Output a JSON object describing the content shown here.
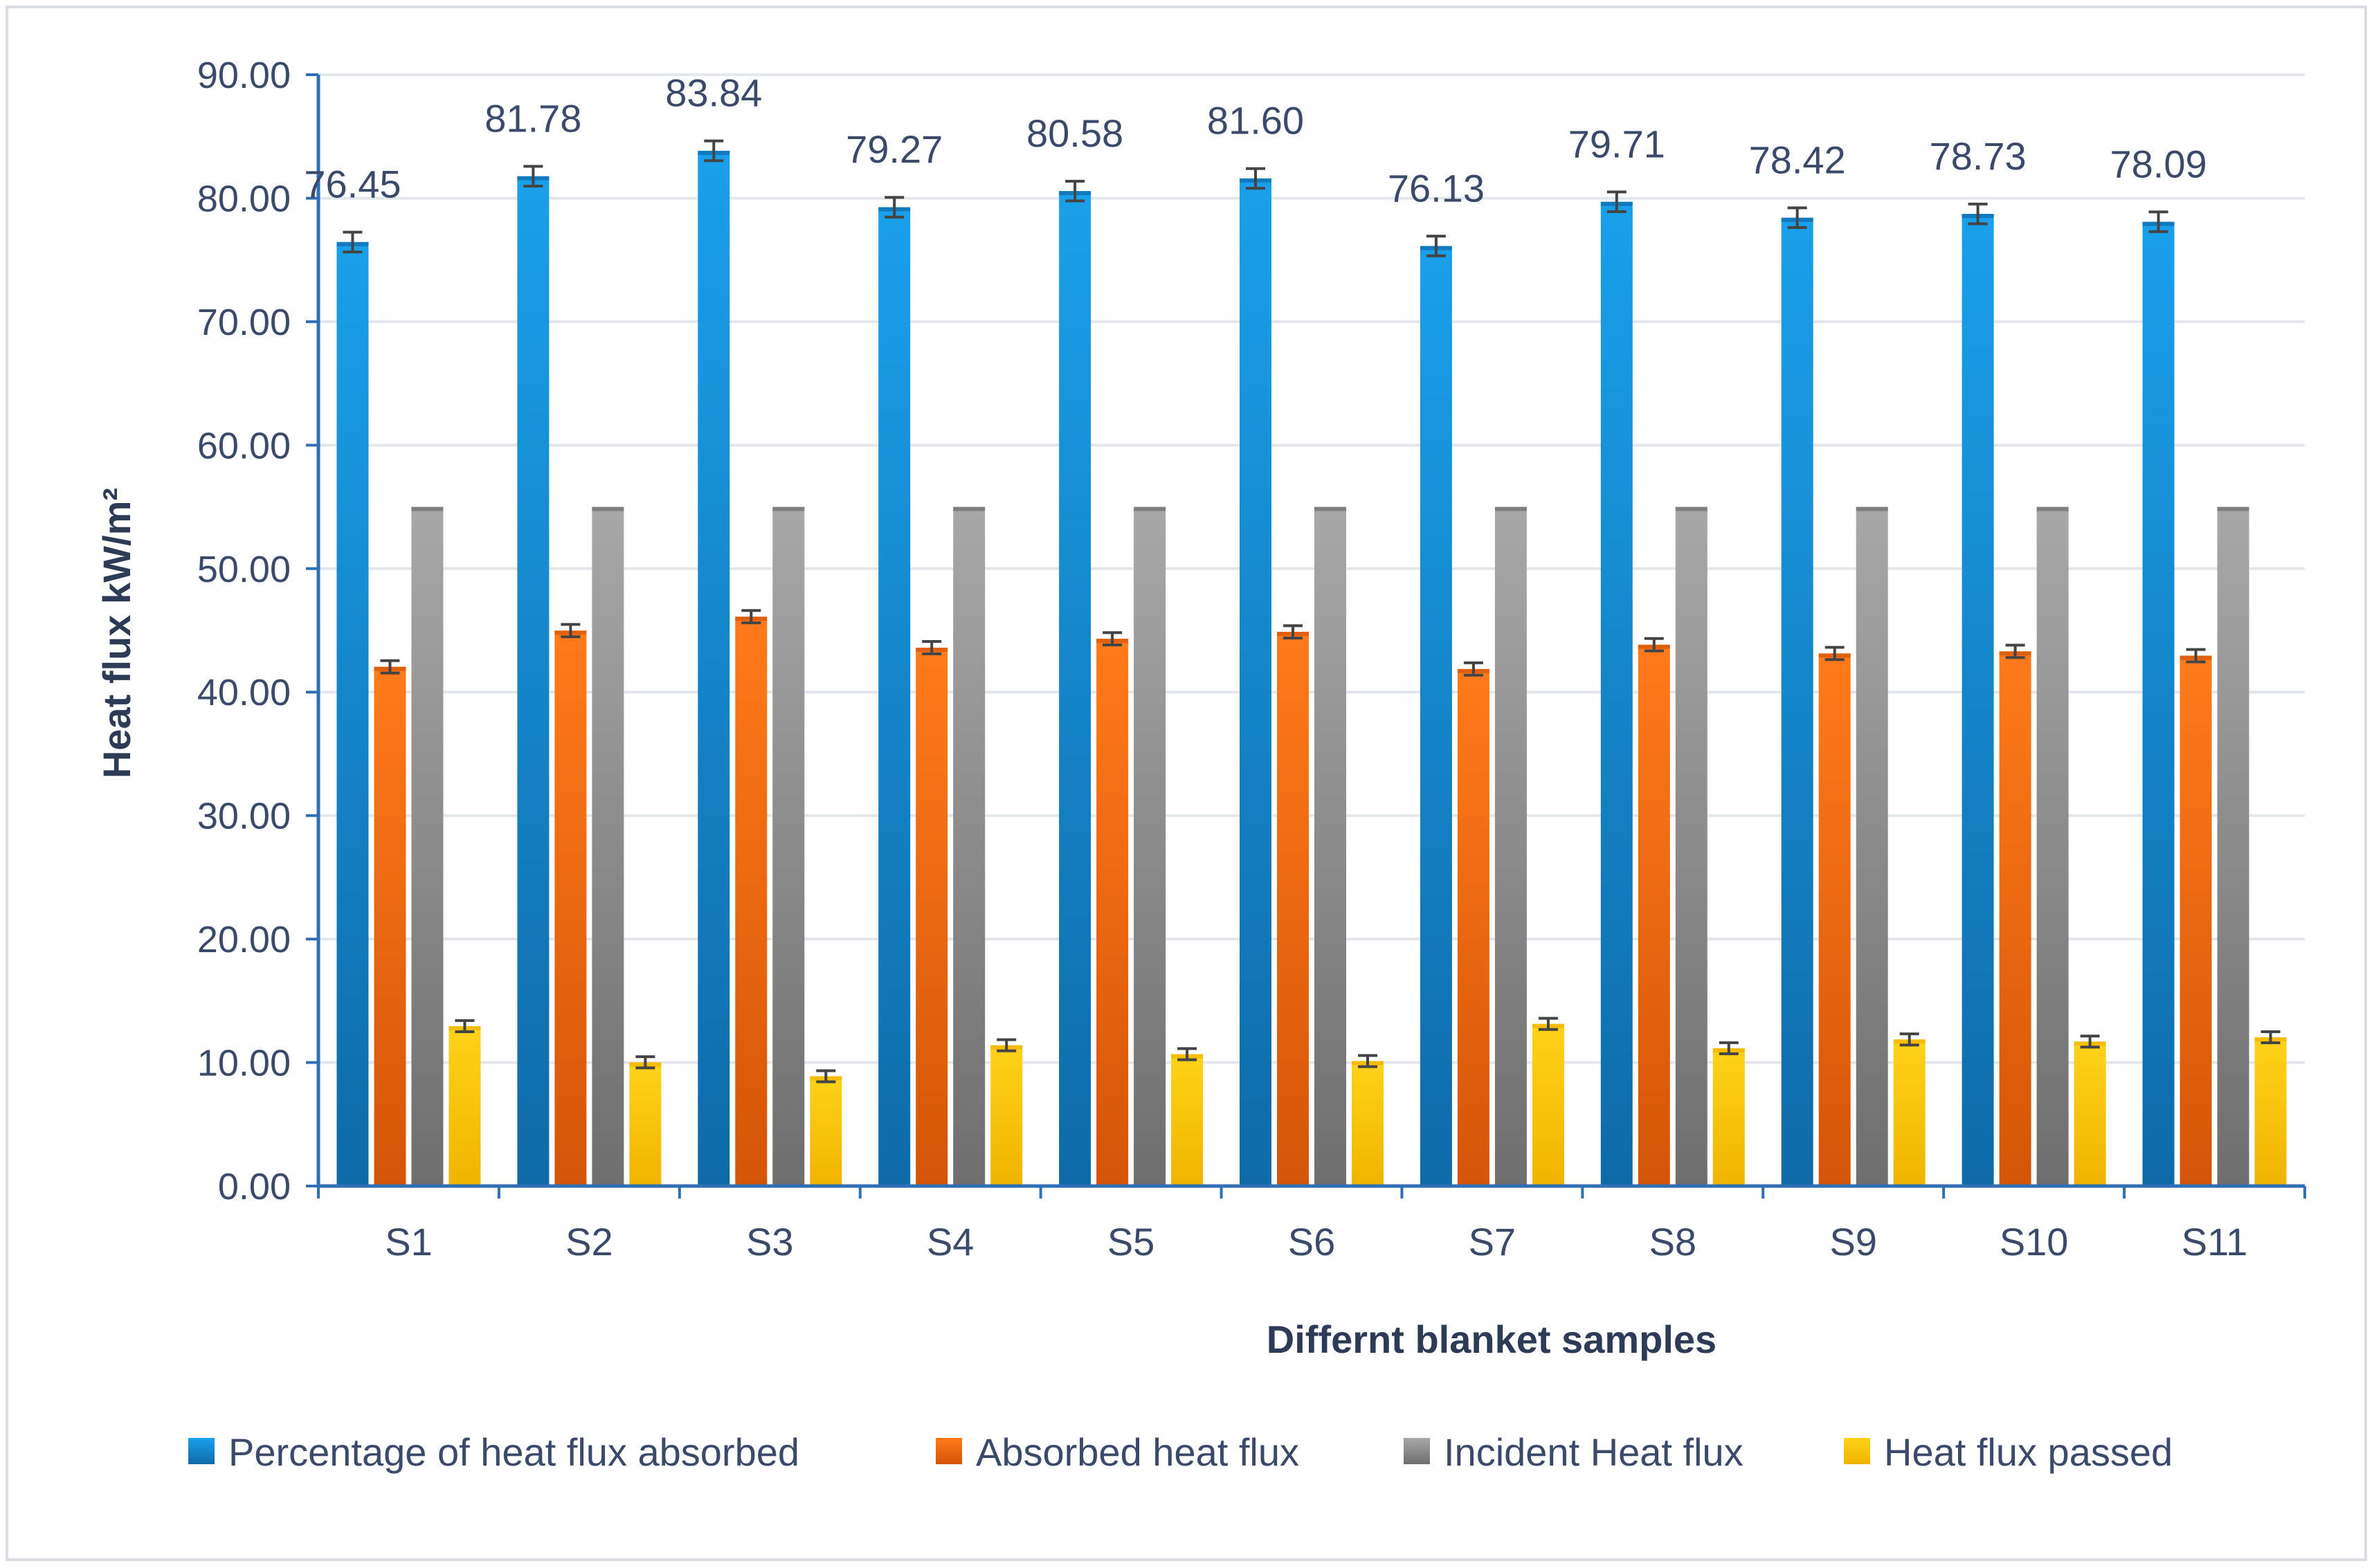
{
  "chart_data": {
    "type": "bar",
    "title": "",
    "xlabel": "Differnt blanket samples",
    "ylabel": "Heat flux kW/m²",
    "ylim": [
      0,
      90
    ],
    "yticks": [
      0,
      10,
      20,
      30,
      40,
      50,
      60,
      70,
      80,
      90
    ],
    "ytick_labels": [
      "0.00",
      "10.00",
      "20.00",
      "30.00",
      "40.00",
      "50.00",
      "60.00",
      "70.00",
      "80.00",
      "90.00"
    ],
    "grid": true,
    "legend_position": "bottom",
    "categories": [
      "S1",
      "S2",
      "S3",
      "S4",
      "S5",
      "S6",
      "S7",
      "S8",
      "S9",
      "S10",
      "S11"
    ],
    "series": [
      {
        "name": "Percentage of heat flux absorbed",
        "color_top": "#1aa0ea",
        "color_bottom": "#0f6aa8",
        "values": [
          76.45,
          81.78,
          83.84,
          79.27,
          80.58,
          81.6,
          76.13,
          79.71,
          78.42,
          78.73,
          78.09
        ],
        "labels": [
          "76.45",
          "81.78",
          "83.84",
          "79.27",
          "80.58",
          "81.60",
          "76.13",
          "79.71",
          "78.42",
          "78.73",
          "78.09"
        ],
        "error": 0.8
      },
      {
        "name": "Absorbed heat flux",
        "color_top": "#ff7a1a",
        "color_bottom": "#d45508",
        "values": [
          42.05,
          44.98,
          46.11,
          43.6,
          44.32,
          44.88,
          41.87,
          43.84,
          43.13,
          43.3,
          42.95
        ],
        "error": 0.5
      },
      {
        "name": "Incident Heat flux",
        "color_top": "#a8a8a8",
        "color_bottom": "#6e6e6e",
        "values": [
          55,
          55,
          55,
          55,
          55,
          55,
          55,
          55,
          55,
          55,
          55
        ],
        "error": 0
      },
      {
        "name": "Heat flux passed",
        "color_top": "#ffd21a",
        "color_bottom": "#f0b400",
        "values": [
          12.95,
          10.02,
          8.89,
          11.4,
          10.68,
          10.12,
          13.13,
          11.16,
          11.87,
          11.7,
          12.05
        ],
        "error": 0.45
      }
    ]
  }
}
